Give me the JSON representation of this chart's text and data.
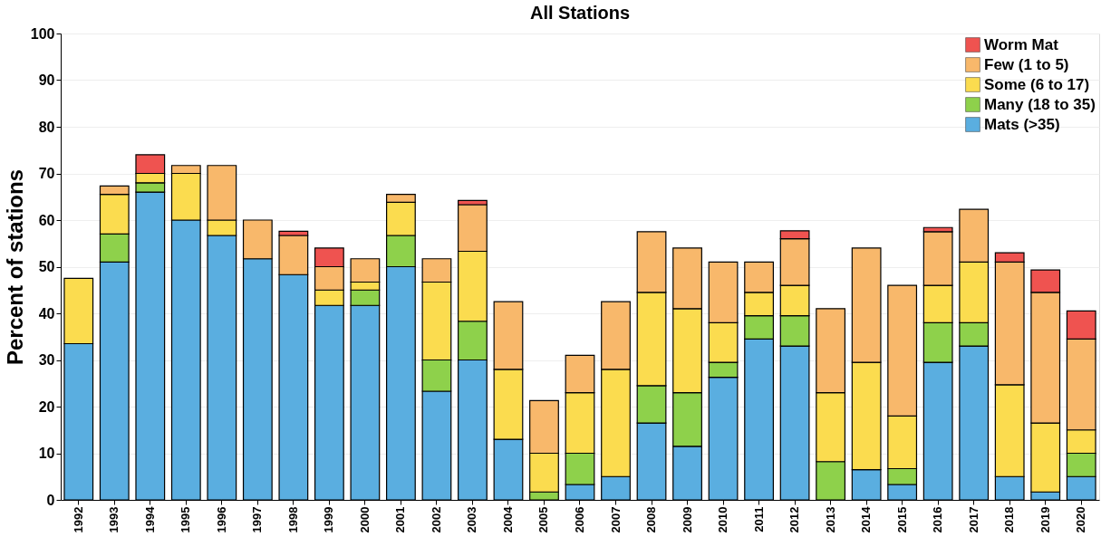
{
  "chart_data": {
    "type": "bar",
    "title": "All Stations",
    "ylabel": "Percent of stations",
    "stacked": true,
    "categories": [
      "1992",
      "1993",
      "1994",
      "1995",
      "1996",
      "1997",
      "1998",
      "1999",
      "2000",
      "2001",
      "2002",
      "2003",
      "2004",
      "2005",
      "2006",
      "2007",
      "2008",
      "2009",
      "2010",
      "2011",
      "2012",
      "2013",
      "2014",
      "2015",
      "2016",
      "2017",
      "2018",
      "2019",
      "2020"
    ],
    "series": [
      {
        "name": "Mats (>35)",
        "color": "#5aaee0",
        "values": [
          33.5,
          51,
          66,
          60,
          56.7,
          51.7,
          48.3,
          41.7,
          41.7,
          50,
          23.3,
          30,
          13,
          0,
          3.3,
          5,
          16.5,
          11.5,
          26.3,
          34.5,
          33,
          0,
          6.5,
          3.3,
          29.5,
          33,
          5,
          1.7,
          5
        ]
      },
      {
        "name": "Many (18 to 35)",
        "color": "#8ed14b",
        "values": [
          0,
          6,
          2,
          0,
          0,
          0,
          0,
          0,
          3.3,
          6.7,
          6.7,
          8.3,
          0,
          1.7,
          6.7,
          0,
          8,
          11.5,
          3.2,
          5,
          6.5,
          8.2,
          0,
          3.4,
          8.5,
          5,
          0,
          0,
          5
        ]
      },
      {
        "name": "Some (6 to 17)",
        "color": "#fbdc4f",
        "values": [
          14,
          8.5,
          2,
          10,
          3.3,
          0,
          0,
          3.3,
          1.7,
          7.1,
          16.7,
          15,
          15,
          8.3,
          13,
          23,
          20,
          18,
          8.5,
          5,
          6.5,
          14.8,
          23,
          11.3,
          8,
          13,
          19.7,
          14.8,
          5
        ]
      },
      {
        "name": "Few (1 to 5)",
        "color": "#f8b86b",
        "values": [
          0,
          1.8,
          0,
          1.7,
          11.7,
          8.3,
          8.4,
          5,
          5,
          1.7,
          5,
          10,
          14.5,
          11.3,
          8,
          14.5,
          13,
          13,
          13,
          6.5,
          10,
          18,
          24.5,
          28,
          11.5,
          11.3,
          26.3,
          28,
          19.5
        ]
      },
      {
        "name": "Worm Mat",
        "color": "#ef5350",
        "values": [
          0,
          0,
          4,
          0,
          0,
          0,
          0.9,
          4,
          0,
          0,
          0,
          0.9,
          0,
          0,
          0,
          0,
          0,
          0,
          0,
          0,
          1.7,
          0,
          0,
          0,
          0.9,
          0,
          2,
          4.8,
          6
        ]
      }
    ],
    "ylim": [
      0,
      100
    ],
    "yticks": [
      0,
      10,
      20,
      30,
      40,
      50,
      60,
      70,
      80,
      90,
      100
    ],
    "grid": "y",
    "legend": "top right"
  }
}
